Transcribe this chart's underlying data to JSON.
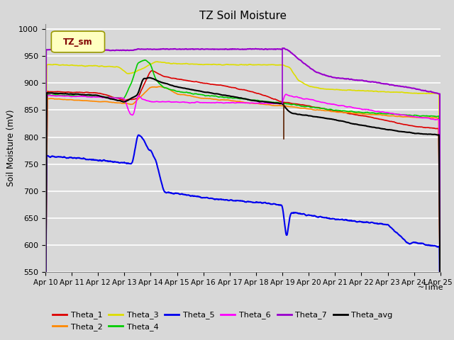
{
  "title": "TZ Soil Moisture",
  "xlabel": "~Time",
  "ylabel": "Soil Moisture (mV)",
  "ylim": [
    550,
    1010
  ],
  "yticks": [
    550,
    600,
    650,
    700,
    750,
    800,
    850,
    900,
    950,
    1000
  ],
  "x_tick_labels": [
    "Apr 10",
    "Apr 11",
    "Apr 12",
    "Apr 13",
    "Apr 14",
    "Apr 15",
    "Apr 16",
    "Apr 17",
    "Apr 18",
    "Apr 19",
    "Apr 20",
    "Apr 21",
    "Apr 22",
    "Apr 23",
    "Apr 24",
    "Apr 25"
  ],
  "background_color": "#d8d8d8",
  "plot_bg_color": "#d8d8d8",
  "legend_box_color": "#ffffc0",
  "legend_box_label": "TZ_sm",
  "legend_box_text_color": "#800000",
  "grid_color": "#ffffff",
  "series": {
    "Theta_1": {
      "color": "#dd0000",
      "lw": 1.2
    },
    "Theta_2": {
      "color": "#ff8800",
      "lw": 1.2
    },
    "Theta_3": {
      "color": "#dddd00",
      "lw": 1.2
    },
    "Theta_4": {
      "color": "#00cc00",
      "lw": 1.2
    },
    "Theta_5": {
      "color": "#0000ee",
      "lw": 1.5
    },
    "Theta_6": {
      "color": "#ff00ff",
      "lw": 1.2
    },
    "Theta_7": {
      "color": "#9900cc",
      "lw": 1.5
    },
    "Theta_avg": {
      "color": "#000000",
      "lw": 1.5
    }
  },
  "vline_purple": {
    "x": 9.0,
    "color": "#9900cc",
    "lw": 1.2
  },
  "vline_brown": {
    "x": 9.05,
    "color": "#5a2000",
    "lw": 1.2
  }
}
